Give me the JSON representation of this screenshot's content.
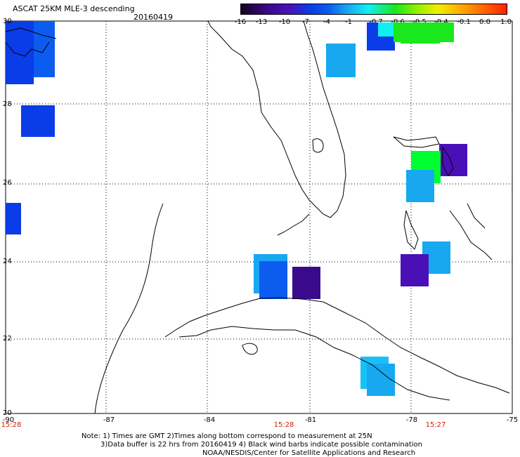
{
  "header": {
    "title": "ASCAT 25KM MLE-3 descending",
    "date": "20160419"
  },
  "colorbar": {
    "labels": [
      "-16",
      "-13",
      "-10",
      "-7",
      "-4",
      "-1",
      "-0.7",
      "-0.6",
      "-0.5",
      "-0.4",
      "-0.1",
      "0.0",
      "1.0"
    ]
  },
  "axes": {
    "lat_labels": [
      "30",
      "28",
      "26",
      "24",
      "22",
      "20"
    ],
    "lon_labels": [
      "-90",
      "-87",
      "-84",
      "-81",
      "-78",
      "-75"
    ]
  },
  "times": [
    "15:28",
    "15:28",
    "15:27"
  ],
  "notes": {
    "line1": "Note: 1) Times are GMT 2)Times along bottom correspond to measurement at 25N",
    "line2": "3)Data buffer is 22 hrs from 20160419 4) Black wind barbs indicate possible contamination",
    "line3": "NOAA/NESDIS/Center for Satellite Applications and Research"
  },
  "colors": {
    "dark_purple": "#3a0a8c",
    "purple": "#4a10b8",
    "blue": "#0a3ce8",
    "mid_blue": "#0c5cf0",
    "light_blue": "#18a8f0",
    "sky_blue": "#18c0f8",
    "cyan": "#10f0f0",
    "green": "#18e81c",
    "bright_green": "#00ff30"
  }
}
